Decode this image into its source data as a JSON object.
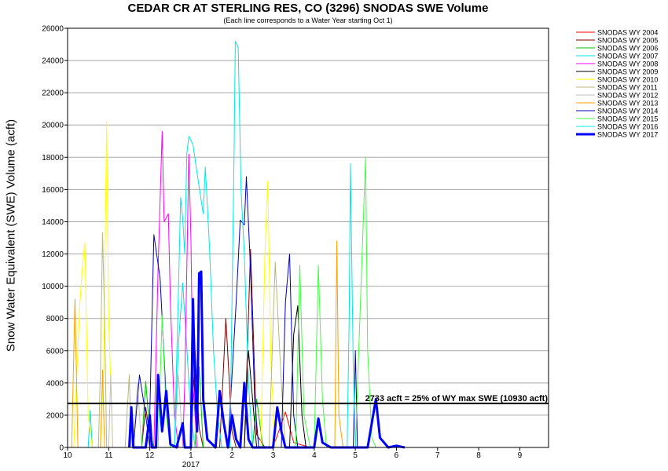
{
  "chart_data": {
    "type": "line",
    "title": "CEDAR CR AT STERLING RES, CO (3296) SNODAS SWE Volume",
    "subtitle": "(Each line corresponds to a Water Year starting Oct 1)",
    "ylabel": "Snow Water Equivalent (SWE) Volume (acft)",
    "ylim": [
      0,
      26000
    ],
    "yticks": [
      0,
      2000,
      4000,
      6000,
      8000,
      10000,
      12000,
      14000,
      16000,
      18000,
      20000,
      22000,
      24000,
      26000
    ],
    "xlim": [
      0,
      11.7
    ],
    "x_tick_labels": [
      "10",
      "11",
      "12",
      "1",
      "2",
      "3",
      "4",
      "5",
      "6",
      "7",
      "8",
      "9"
    ],
    "x_year_label": "2017",
    "grid": true,
    "legend_position": "right",
    "reference_line": {
      "value": 2733,
      "label": "2733 acft = 25% of WY max SWE (10930 acft)"
    },
    "series": [
      {
        "name": "SNODAS WY 2004",
        "color": "#ff0000",
        "points": [
          [
            5.0,
            0
          ],
          [
            5.3,
            2200
          ],
          [
            5.5,
            300
          ],
          [
            5.9,
            0
          ]
        ]
      },
      {
        "name": "SNODAS WY 2005",
        "color": "#800000",
        "points": [
          [
            1.8,
            0
          ],
          [
            1.9,
            2500
          ],
          [
            2.0,
            800
          ],
          [
            2.1,
            0
          ],
          [
            3.0,
            0
          ],
          [
            3.1,
            6000
          ],
          [
            3.2,
            1200
          ],
          [
            3.3,
            0
          ],
          [
            3.7,
            0
          ],
          [
            3.85,
            8000
          ],
          [
            4.0,
            1000
          ],
          [
            4.1,
            0
          ],
          [
            4.3,
            0
          ],
          [
            4.45,
            12300
          ],
          [
            4.6,
            800
          ],
          [
            4.8,
            0
          ]
        ]
      },
      {
        "name": "SNODAS WY 2006",
        "color": "#00c000",
        "points": [
          [
            1.8,
            0
          ],
          [
            1.9,
            4100
          ],
          [
            2.0,
            1000
          ],
          [
            2.1,
            0
          ],
          [
            3.1,
            0
          ],
          [
            3.2,
            5000
          ],
          [
            3.3,
            0
          ],
          [
            4.5,
            0
          ],
          [
            4.6,
            3000
          ],
          [
            4.75,
            0
          ]
        ]
      },
      {
        "name": "SNODAS WY 2007",
        "color": "#00e0e0",
        "points": [
          [
            0.5,
            0
          ],
          [
            0.55,
            2300
          ],
          [
            0.6,
            0
          ],
          [
            2.6,
            0
          ],
          [
            2.7,
            6500
          ],
          [
            2.8,
            10200
          ],
          [
            2.9,
            6200
          ],
          [
            3.0,
            2000
          ],
          [
            3.1,
            0
          ]
        ]
      },
      {
        "name": "SNODAS WY 2008",
        "color": "#ff00ff",
        "points": [
          [
            2.1,
            0
          ],
          [
            2.2,
            11000
          ],
          [
            2.3,
            19600
          ],
          [
            2.35,
            14000
          ],
          [
            2.45,
            14500
          ],
          [
            2.5,
            9000
          ],
          [
            2.6,
            2000
          ],
          [
            2.7,
            0
          ],
          [
            2.8,
            0
          ],
          [
            2.85,
            4000
          ],
          [
            2.95,
            18200
          ],
          [
            3.0,
            13000
          ],
          [
            3.05,
            4000
          ],
          [
            3.15,
            0
          ]
        ]
      },
      {
        "name": "SNODAS WY 2009",
        "color": "#000000",
        "points": [
          [
            4.3,
            0
          ],
          [
            4.4,
            6000
          ],
          [
            4.5,
            3000
          ],
          [
            4.6,
            0
          ],
          [
            5.4,
            0
          ],
          [
            5.5,
            7000
          ],
          [
            5.6,
            8800
          ],
          [
            5.7,
            2000
          ],
          [
            5.8,
            0
          ]
        ]
      },
      {
        "name": "SNODAS WY 2010",
        "color": "#ffff00",
        "points": [
          [
            0.15,
            0
          ],
          [
            0.3,
            9000
          ],
          [
            0.35,
            10800
          ],
          [
            0.42,
            12700
          ],
          [
            0.5,
            2000
          ],
          [
            0.6,
            0
          ],
          [
            0.8,
            0
          ],
          [
            0.88,
            5000
          ],
          [
            0.95,
            20200
          ],
          [
            1.0,
            8000
          ],
          [
            1.1,
            0
          ],
          [
            4.7,
            0
          ],
          [
            4.8,
            12000
          ],
          [
            4.87,
            16500
          ],
          [
            4.95,
            5000
          ],
          [
            5.05,
            0
          ]
        ]
      },
      {
        "name": "SNODAS WY 2011",
        "color": "#b8b880",
        "points": [
          [
            0.75,
            0
          ],
          [
            0.8,
            4800
          ],
          [
            0.85,
            13300
          ],
          [
            0.9,
            8000
          ],
          [
            0.95,
            0
          ],
          [
            1.4,
            0
          ],
          [
            1.5,
            4500
          ],
          [
            1.55,
            0
          ],
          [
            4.9,
            0
          ],
          [
            5.05,
            11500
          ],
          [
            5.2,
            4000
          ],
          [
            5.3,
            0
          ]
        ]
      },
      {
        "name": "SNODAS WY 2012",
        "color": "#c0c0c0",
        "points": [
          [
            1.0,
            0
          ],
          [
            1.05,
            4500
          ],
          [
            1.1,
            0
          ],
          [
            1.6,
            0
          ],
          [
            1.7,
            4000
          ],
          [
            1.8,
            0
          ],
          [
            2.6,
            0
          ],
          [
            2.7,
            4500
          ],
          [
            2.8,
            0
          ]
        ]
      },
      {
        "name": "SNODAS WY 2013",
        "color": "#ffa000",
        "points": [
          [
            0.1,
            0
          ],
          [
            0.18,
            9200
          ],
          [
            0.25,
            0
          ],
          [
            0.8,
            0
          ],
          [
            0.85,
            4800
          ],
          [
            0.9,
            0
          ],
          [
            6.5,
            0
          ],
          [
            6.55,
            12800
          ],
          [
            6.6,
            2000
          ],
          [
            6.7,
            0
          ]
        ]
      },
      {
        "name": "SNODAS WY 2014",
        "color": "#0000c0",
        "points": [
          [
            1.6,
            0
          ],
          [
            1.75,
            4500
          ],
          [
            1.9,
            2000
          ],
          [
            2.0,
            0
          ],
          [
            2.0,
            2000
          ],
          [
            2.1,
            13200
          ],
          [
            2.25,
            10500
          ],
          [
            2.4,
            3000
          ],
          [
            2.5,
            0
          ],
          [
            3.9,
            0
          ],
          [
            4.1,
            9000
          ],
          [
            4.2,
            14100
          ],
          [
            4.3,
            13800
          ],
          [
            4.35,
            16800
          ],
          [
            4.45,
            11000
          ],
          [
            4.55,
            3000
          ],
          [
            4.65,
            0
          ],
          [
            5.2,
            0
          ],
          [
            5.3,
            9000
          ],
          [
            5.4,
            12000
          ],
          [
            5.5,
            2000
          ],
          [
            5.6,
            0
          ],
          [
            6.95,
            0
          ],
          [
            7.0,
            6000
          ],
          [
            7.05,
            0
          ]
        ]
      },
      {
        "name": "SNODAS WY 2015",
        "color": "#40ff40",
        "points": [
          [
            2.2,
            0
          ],
          [
            2.3,
            8200
          ],
          [
            2.4,
            2000
          ],
          [
            2.5,
            0
          ],
          [
            5.55,
            0
          ],
          [
            5.65,
            11300
          ],
          [
            5.75,
            2000
          ],
          [
            5.9,
            0
          ],
          [
            6.0,
            0
          ],
          [
            6.1,
            11300
          ],
          [
            6.2,
            3000
          ],
          [
            6.3,
            0
          ],
          [
            7.0,
            0
          ],
          [
            7.2,
            14500
          ],
          [
            7.25,
            18000
          ],
          [
            7.3,
            6000
          ],
          [
            7.4,
            600
          ],
          [
            7.5,
            0
          ]
        ]
      },
      {
        "name": "SNODAS WY 2016",
        "color": "#00e8e8",
        "points": [
          [
            2.6,
            0
          ],
          [
            2.7,
            10000
          ],
          [
            2.75,
            15500
          ],
          [
            2.8,
            14200
          ],
          [
            2.85,
            12000
          ],
          [
            2.9,
            18200
          ],
          [
            2.95,
            19300
          ],
          [
            3.05,
            18800
          ],
          [
            3.15,
            17000
          ],
          [
            3.3,
            14500
          ],
          [
            3.35,
            17400
          ],
          [
            3.45,
            12500
          ],
          [
            3.55,
            6000
          ],
          [
            3.65,
            2000
          ],
          [
            3.75,
            0
          ],
          [
            3.95,
            0
          ],
          [
            4.05,
            18000
          ],
          [
            4.08,
            25200
          ],
          [
            4.15,
            24800
          ],
          [
            4.22,
            16000
          ],
          [
            4.3,
            12000
          ],
          [
            4.4,
            4000
          ],
          [
            4.5,
            0
          ],
          [
            6.8,
            0
          ],
          [
            6.85,
            8000
          ],
          [
            6.88,
            17600
          ],
          [
            6.95,
            5000
          ],
          [
            7.0,
            0
          ]
        ]
      },
      {
        "name": "SNODAS WY 2017",
        "color": "#0000ff",
        "bold": true,
        "points": [
          [
            1.5,
            0
          ],
          [
            1.55,
            2500
          ],
          [
            1.6,
            0
          ],
          [
            1.9,
            0
          ],
          [
            2.0,
            2000
          ],
          [
            2.05,
            0
          ],
          [
            2.15,
            0
          ],
          [
            2.2,
            4500
          ],
          [
            2.3,
            1000
          ],
          [
            2.4,
            3500
          ],
          [
            2.5,
            200
          ],
          [
            2.65,
            0
          ],
          [
            2.8,
            1500
          ],
          [
            2.85,
            0
          ],
          [
            3.0,
            0
          ],
          [
            3.05,
            9200
          ],
          [
            3.1,
            4000
          ],
          [
            3.15,
            1000
          ],
          [
            3.2,
            10800
          ],
          [
            3.25,
            10900
          ],
          [
            3.3,
            3000
          ],
          [
            3.4,
            500
          ],
          [
            3.6,
            0
          ],
          [
            3.7,
            3500
          ],
          [
            3.8,
            1500
          ],
          [
            3.9,
            0
          ],
          [
            4.0,
            2000
          ],
          [
            4.1,
            500
          ],
          [
            4.2,
            0
          ],
          [
            4.3,
            4000
          ],
          [
            4.4,
            500
          ],
          [
            4.5,
            0
          ],
          [
            5.0,
            0
          ],
          [
            5.1,
            2500
          ],
          [
            5.2,
            1000
          ],
          [
            5.3,
            0
          ],
          [
            6.0,
            0
          ],
          [
            6.1,
            1800
          ],
          [
            6.2,
            300
          ],
          [
            6.4,
            0
          ],
          [
            7.3,
            0
          ],
          [
            7.5,
            3000
          ],
          [
            7.6,
            600
          ],
          [
            7.8,
            0
          ],
          [
            8.0,
            100
          ],
          [
            8.2,
            0
          ]
        ]
      }
    ]
  }
}
